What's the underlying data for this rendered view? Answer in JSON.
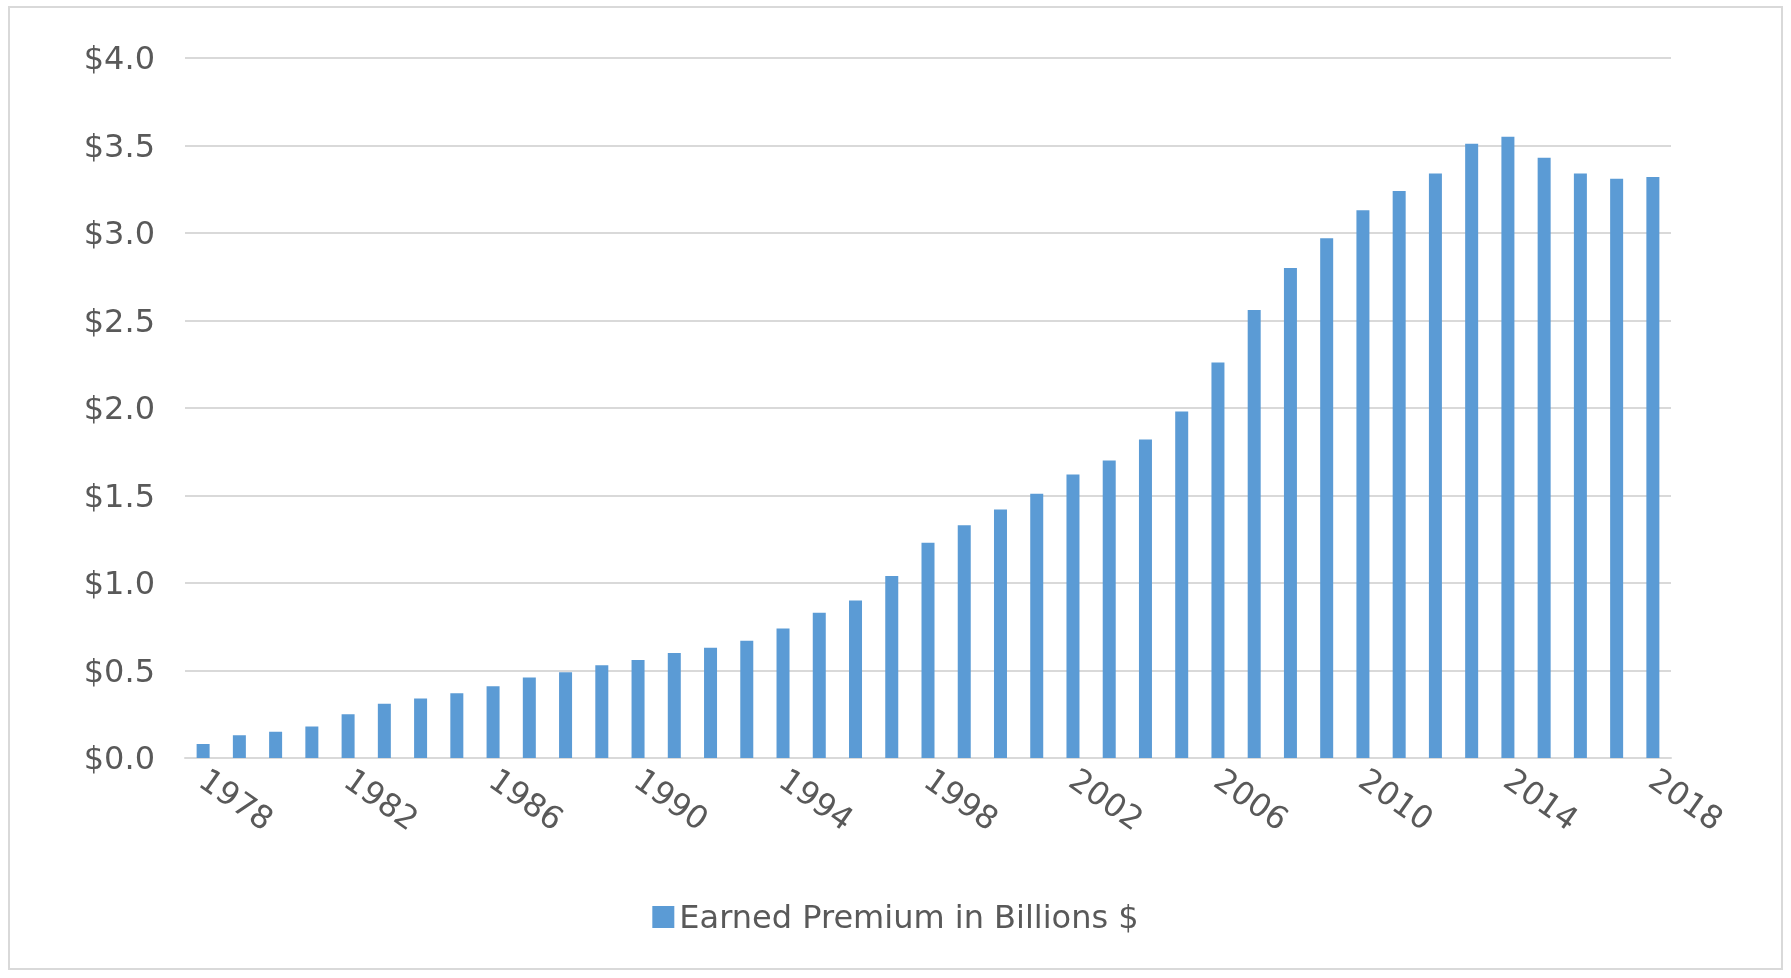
{
  "chart_data": {
    "type": "bar",
    "categories": [
      "1978",
      null,
      null,
      null,
      "1982",
      null,
      null,
      null,
      "1986",
      null,
      null,
      null,
      "1990",
      null,
      null,
      null,
      "1994",
      null,
      null,
      null,
      "1998",
      null,
      null,
      null,
      "2002",
      null,
      null,
      null,
      "2006",
      null,
      null,
      null,
      "2010",
      null,
      null,
      null,
      "2014",
      null,
      null,
      null,
      "2018"
    ],
    "series": [
      {
        "name": "Earned Premium in Billions $",
        "color": "#5b9bd5",
        "values": [
          0.08,
          0.13,
          0.15,
          0.18,
          0.25,
          0.31,
          0.34,
          0.37,
          0.41,
          0.46,
          0.49,
          0.53,
          0.56,
          0.6,
          0.63,
          0.67,
          0.74,
          0.83,
          0.9,
          1.04,
          1.23,
          1.33,
          1.42,
          1.51,
          1.62,
          1.7,
          1.82,
          1.98,
          2.26,
          2.56,
          2.8,
          2.97,
          3.13,
          3.24,
          3.34,
          3.51,
          3.55,
          3.43,
          3.34,
          3.31,
          3.32
        ]
      }
    ],
    "ylim": [
      0,
      4
    ],
    "yticks": [
      {
        "value": 0,
        "label": "$0.0"
      },
      {
        "value": 0.5,
        "label": "$0.5"
      },
      {
        "value": 1,
        "label": "$1.0"
      },
      {
        "value": 1.5,
        "label": "$1.5"
      },
      {
        "value": 2,
        "label": "$2.0"
      },
      {
        "value": 2.5,
        "label": "$2.5"
      },
      {
        "value": 3,
        "label": "$3.0"
      },
      {
        "value": 3.5,
        "label": "$3.5"
      },
      {
        "value": 4,
        "label": "$4.0"
      }
    ],
    "grid": "y",
    "legend": "bottom"
  }
}
